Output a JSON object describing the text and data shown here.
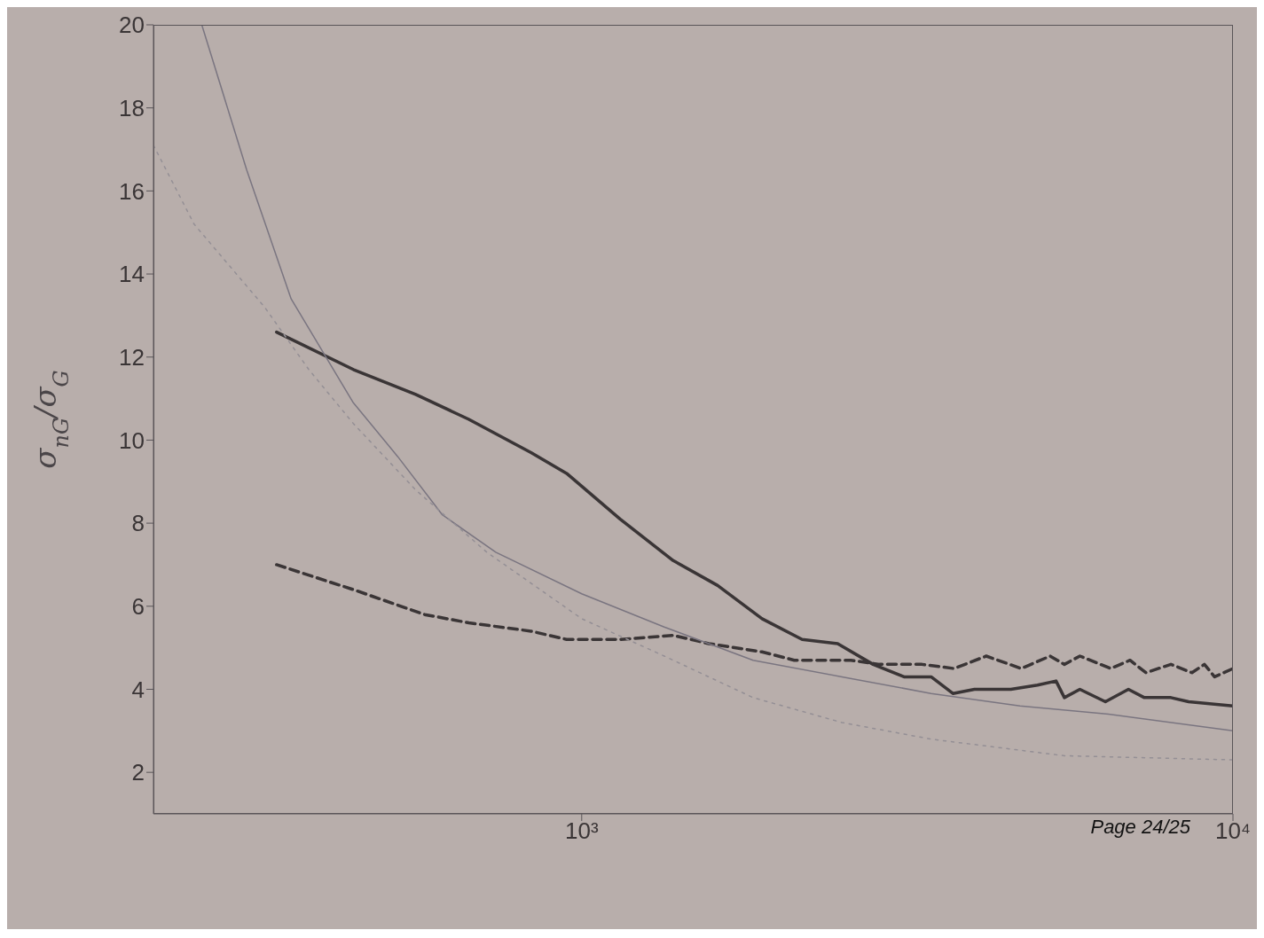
{
  "chart_data": {
    "type": "line",
    "ylabel": "σ$_{nG}$/σ$_{G}$",
    "log": "x",
    "grid": false,
    "legend": false,
    "marker": "none",
    "xlim": [
      220,
      10000
    ],
    "xticks": [
      {
        "value": 1000,
        "label": "10³"
      },
      {
        "value": 10000,
        "label": "10⁴"
      }
    ],
    "ylim": [
      1,
      20
    ],
    "yticks": [
      2,
      4,
      6,
      8,
      10,
      12,
      14,
      16,
      18,
      20
    ],
    "annotations": [
      "Page 24/25"
    ],
    "series": [
      {
        "color": "#3a3536",
        "line_style": "solid",
        "x": [
          340,
          446,
          556,
          671,
          836,
          948,
          1145,
          1382,
          1617,
          1892,
          2180,
          2472,
          2802,
          3126,
          3440,
          3715,
          4010,
          4560,
          5010,
          5350,
          5510,
          5820,
          6370,
          6910,
          7310,
          8030,
          8550,
          10000
        ],
        "values": [
          12.6,
          11.7,
          11.1,
          10.5,
          9.7,
          9.2,
          8.1,
          7.1,
          6.5,
          5.7,
          5.2,
          5.1,
          4.6,
          4.3,
          4.3,
          3.9,
          4.0,
          4.0,
          4.1,
          4.2,
          3.8,
          4.0,
          3.7,
          4.0,
          3.8,
          3.8,
          3.7,
          3.6
        ]
      },
      {
        "color": "#3a3536",
        "line_style": "dashed",
        "x": [
          340,
          446,
          574,
          671,
          836,
          948,
          1145,
          1382,
          1567,
          1892,
          2120,
          2590,
          2865,
          3330,
          3730,
          4180,
          4730,
          5240,
          5510,
          5820,
          6490,
          6950,
          7350,
          8030,
          8650,
          9040,
          9370,
          10000
        ],
        "values": [
          7.0,
          6.4,
          5.8,
          5.6,
          5.4,
          5.2,
          5.2,
          5.3,
          5.1,
          4.9,
          4.7,
          4.7,
          4.6,
          4.6,
          4.5,
          4.8,
          4.5,
          4.8,
          4.6,
          4.8,
          4.5,
          4.7,
          4.4,
          4.6,
          4.4,
          4.6,
          4.3,
          4.5
        ]
      },
      {
        "color": "#7a7580",
        "line_style": "solid",
        "x": [
          261,
          306,
          358,
          446,
          522,
          611,
          738,
          1000,
          1339,
          1833,
          2510,
          3440,
          4710,
          6440,
          10000
        ],
        "values": [
          20,
          16.5,
          13.4,
          10.9,
          9.6,
          8.2,
          7.3,
          6.3,
          5.5,
          4.7,
          4.3,
          3.9,
          3.6,
          3.4,
          3.0
        ]
      },
      {
        "color": "#948f95",
        "line_style": "dotted",
        "x": [
          220,
          254,
          326,
          381,
          446,
          556,
          715,
          1000,
          1339,
          1833,
          2510,
          3440,
          5510,
          10000
        ],
        "values": [
          17.1,
          15.2,
          13.2,
          11.7,
          10.4,
          8.8,
          7.3,
          5.7,
          4.8,
          3.8,
          3.2,
          2.8,
          2.4,
          2.3
        ]
      }
    ]
  }
}
